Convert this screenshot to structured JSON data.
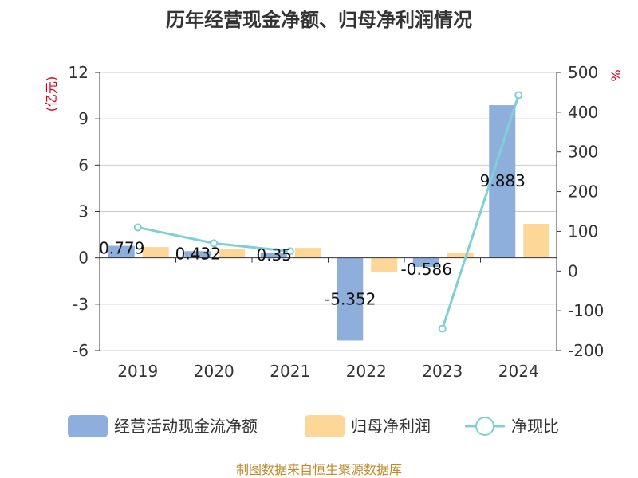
{
  "chart_data": {
    "type": "bar",
    "title": "历年经营现金净额、归母净利润情况",
    "categories": [
      "2019",
      "2020",
      "2021",
      "2022",
      "2023",
      "2024"
    ],
    "y_left": {
      "label": "(亿元)",
      "ticks": [
        "12",
        "9",
        "6",
        "3",
        "0",
        "-3",
        "-6"
      ],
      "ylim": [
        -6,
        12
      ]
    },
    "y_right": {
      "label": "%",
      "ticks": [
        "500",
        "400",
        "300",
        "200",
        "100",
        "0",
        "-100",
        "-200"
      ],
      "ylim": [
        -200,
        500
      ]
    },
    "series": [
      {
        "name": "经营活动现金流净额",
        "type": "bar",
        "axis": "left",
        "color": "#8eaedc",
        "values": [
          0.779,
          0.432,
          0.35,
          -5.352,
          -0.586,
          9.883
        ],
        "labels": [
          "0.779",
          "0.432",
          "0.35",
          "-5.352",
          "-0.586",
          "9.883"
        ]
      },
      {
        "name": "归母净利润",
        "type": "bar",
        "axis": "left",
        "color": "#fdd797",
        "values": [
          0.7,
          0.6,
          0.65,
          -0.95,
          0.35,
          2.2
        ]
      },
      {
        "name": "净现比",
        "type": "line",
        "axis": "right",
        "color": "#7fd0d6",
        "values": [
          110,
          70,
          50,
          null,
          -145,
          443
        ]
      }
    ],
    "legend_position": "bottom",
    "grid": true
  },
  "footer": "制图数据来自恒生聚源数据库"
}
